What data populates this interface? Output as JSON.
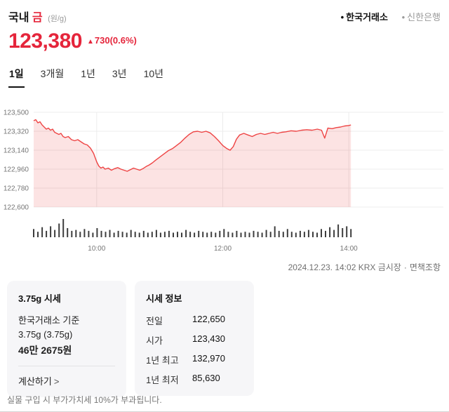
{
  "colors": {
    "accent_red": "#e5253b"
  },
  "header": {
    "title_prefix": "국내",
    "title_highlight": "금",
    "unit": "(원/g)",
    "bullet": "•",
    "sources": [
      {
        "label": "한국거래소",
        "selected": true
      },
      {
        "label": "신한은행",
        "selected": false
      }
    ]
  },
  "price": {
    "current": "123,380",
    "change_icon": "▲",
    "change": "730",
    "change_pct": "(0.6%)"
  },
  "tabs": [
    {
      "label": "1일",
      "active": true
    },
    {
      "label": "3개월",
      "active": false
    },
    {
      "label": "1년",
      "active": false
    },
    {
      "label": "3년",
      "active": false
    },
    {
      "label": "10년",
      "active": false
    }
  ],
  "meta": {
    "timestamp": "2024.12.23. 14:02 KRX 금시장",
    "separator": "·",
    "disclaimer": "면책조항"
  },
  "cards": {
    "unit_price": {
      "title": "3.75g 시세",
      "basis": "한국거래소 기준",
      "weight": "3.75g (3.75g)",
      "price": "46만 2675원",
      "link": "계산하기",
      "link_arrow": ">"
    },
    "quote_info": {
      "title": "시세 정보",
      "rows": [
        {
          "label": "전일",
          "value": "122,650"
        },
        {
          "label": "시가",
          "value": "123,430"
        },
        {
          "label": "1년 최고",
          "value": "132,970"
        },
        {
          "label": "1년 최저",
          "value": "85,630"
        }
      ]
    }
  },
  "footnote": "실물 구입 시 부가가치세 10%가 부과됩니다.",
  "chart_data": {
    "type": "area",
    "x_range": [
      "09:00",
      "15:30"
    ],
    "x_ticks": [
      "10:00",
      "12:00",
      "14:00"
    ],
    "ylim": [
      122600,
      123500
    ],
    "y_ticks": [
      123500,
      123320,
      123140,
      122960,
      122780,
      122600
    ],
    "line_color": "#ee4444",
    "fill_color": "rgba(238,68,68,0.15)",
    "grid_color": "#ececec",
    "axis_text_color": "#757575",
    "volume_color": "#3d3d3d",
    "series": [
      {
        "name": "국내 금 (원/g)",
        "points": [
          [
            "09:00",
            123420
          ],
          [
            "09:02",
            123430
          ],
          [
            "09:04",
            123400
          ],
          [
            "09:06",
            123410
          ],
          [
            "09:08",
            123380
          ],
          [
            "09:10",
            123360
          ],
          [
            "09:12",
            123340
          ],
          [
            "09:14",
            123350
          ],
          [
            "09:16",
            123330
          ],
          [
            "09:18",
            123340
          ],
          [
            "09:20",
            123310
          ],
          [
            "09:22",
            123300
          ],
          [
            "09:24",
            123290
          ],
          [
            "09:26",
            123300
          ],
          [
            "09:28",
            123270
          ],
          [
            "09:30",
            123260
          ],
          [
            "09:33",
            123270
          ],
          [
            "09:36",
            123240
          ],
          [
            "09:39",
            123230
          ],
          [
            "09:42",
            123240
          ],
          [
            "09:45",
            123220
          ],
          [
            "09:48",
            123200
          ],
          [
            "09:51",
            123190
          ],
          [
            "09:54",
            123160
          ],
          [
            "09:57",
            123110
          ],
          [
            "10:00",
            123030
          ],
          [
            "10:02",
            122990
          ],
          [
            "10:04",
            122970
          ],
          [
            "10:06",
            122980
          ],
          [
            "10:08",
            122960
          ],
          [
            "10:11",
            122970
          ],
          [
            "10:14",
            122950
          ],
          [
            "10:17",
            122965
          ],
          [
            "10:20",
            122975
          ],
          [
            "10:23",
            122960
          ],
          [
            "10:26",
            122950
          ],
          [
            "10:29",
            122940
          ],
          [
            "10:32",
            122955
          ],
          [
            "10:35",
            122970
          ],
          [
            "10:38",
            122960
          ],
          [
            "10:41",
            122950
          ],
          [
            "10:44",
            122965
          ],
          [
            "10:47",
            122985
          ],
          [
            "10:50",
            123000
          ],
          [
            "10:53",
            123020
          ],
          [
            "10:56",
            123045
          ],
          [
            "11:00",
            123075
          ],
          [
            "11:04",
            123105
          ],
          [
            "11:08",
            123135
          ],
          [
            "11:12",
            123155
          ],
          [
            "11:16",
            123185
          ],
          [
            "11:20",
            123215
          ],
          [
            "11:24",
            123255
          ],
          [
            "11:28",
            123290
          ],
          [
            "11:32",
            123315
          ],
          [
            "11:36",
            123320
          ],
          [
            "11:40",
            123310
          ],
          [
            "11:44",
            123320
          ],
          [
            "11:48",
            123305
          ],
          [
            "11:52",
            123270
          ],
          [
            "11:56",
            123230
          ],
          [
            "12:00",
            123185
          ],
          [
            "12:04",
            123155
          ],
          [
            "12:07",
            123140
          ],
          [
            "12:10",
            123175
          ],
          [
            "12:13",
            123245
          ],
          [
            "12:16",
            123285
          ],
          [
            "12:20",
            123300
          ],
          [
            "12:24",
            123285
          ],
          [
            "12:28",
            123270
          ],
          [
            "12:32",
            123290
          ],
          [
            "12:36",
            123300
          ],
          [
            "12:40",
            123290
          ],
          [
            "12:44",
            123300
          ],
          [
            "12:48",
            123310
          ],
          [
            "12:52",
            123300
          ],
          [
            "12:56",
            123310
          ],
          [
            "13:00",
            123315
          ],
          [
            "13:05",
            123325
          ],
          [
            "13:10",
            123320
          ],
          [
            "13:15",
            123330
          ],
          [
            "13:20",
            123335
          ],
          [
            "13:25",
            123330
          ],
          [
            "13:30",
            123340
          ],
          [
            "13:34",
            123330
          ],
          [
            "13:37",
            123255
          ],
          [
            "13:40",
            123350
          ],
          [
            "13:44",
            123345
          ],
          [
            "13:48",
            123355
          ],
          [
            "13:52",
            123360
          ],
          [
            "13:56",
            123370
          ],
          [
            "14:00",
            123375
          ],
          [
            "14:02",
            123380
          ]
        ]
      }
    ],
    "volume_bars": [
      45,
      30,
      55,
      35,
      60,
      40,
      75,
      100,
      50,
      35,
      40,
      30,
      45,
      35,
      25,
      50,
      35,
      30,
      40,
      25,
      35,
      30,
      25,
      40,
      30,
      25,
      35,
      25,
      30,
      40,
      25,
      30,
      35,
      25,
      30,
      25,
      40,
      30,
      25,
      35,
      30,
      25,
      30,
      25,
      35,
      45,
      30,
      25,
      35,
      25,
      30,
      25,
      35,
      30,
      25,
      40,
      30,
      60,
      35,
      30,
      45,
      30,
      25,
      35,
      30,
      40,
      30,
      25,
      45,
      35,
      55,
      40,
      70,
      50,
      60,
      45
    ]
  }
}
